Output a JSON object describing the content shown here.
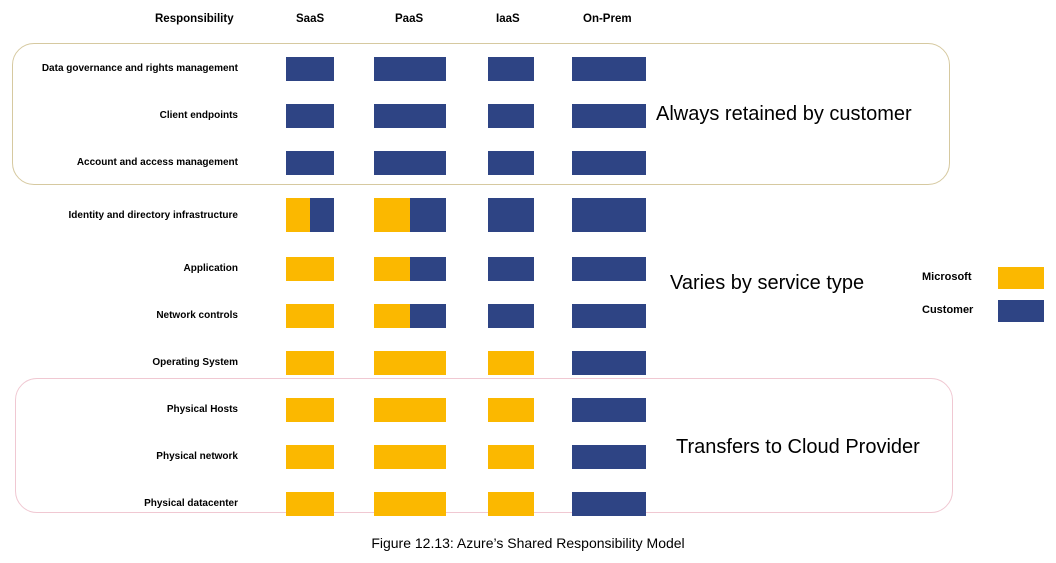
{
  "columns": [
    "Responsibility",
    "SaaS",
    "PaaS",
    "IaaS",
    "On-Prem"
  ],
  "colors": {
    "microsoft": "#fbb800",
    "customer": "#2e4484"
  },
  "legend": [
    {
      "label": "Microsoft",
      "color_key": "microsoft"
    },
    {
      "label": "Customer",
      "color_key": "customer"
    }
  ],
  "groups": [
    {
      "label": "Always retained by customer"
    },
    {
      "label": "Varies by service type"
    },
    {
      "label": "Transfers to Cloud Provider"
    }
  ],
  "rows": [
    {
      "label": "Data governance and rights management",
      "cells": [
        "customer",
        "customer",
        "customer",
        "customer"
      ]
    },
    {
      "label": "Client endpoints",
      "cells": [
        "customer",
        "customer",
        "customer",
        "customer"
      ]
    },
    {
      "label": "Account and access management",
      "cells": [
        "customer",
        "customer",
        "customer",
        "customer"
      ]
    },
    {
      "label": "Identity and directory infrastructure",
      "cells": [
        "shared",
        "shared",
        "customer",
        "customer"
      ]
    },
    {
      "label": "Application",
      "cells": [
        "microsoft",
        "shared",
        "customer",
        "customer"
      ]
    },
    {
      "label": "Network controls",
      "cells": [
        "microsoft",
        "shared",
        "customer",
        "customer"
      ]
    },
    {
      "label": "Operating System",
      "cells": [
        "microsoft",
        "microsoft",
        "microsoft",
        "customer"
      ]
    },
    {
      "label": "Physical Hosts",
      "cells": [
        "microsoft",
        "microsoft",
        "microsoft",
        "customer"
      ]
    },
    {
      "label": "Physical network",
      "cells": [
        "microsoft",
        "microsoft",
        "microsoft",
        "customer"
      ]
    },
    {
      "label": "Physical datacenter",
      "cells": [
        "microsoft",
        "microsoft",
        "microsoft",
        "customer"
      ]
    }
  ],
  "caption": "Figure 12.13: Azure’s Shared Responsibility Model"
}
